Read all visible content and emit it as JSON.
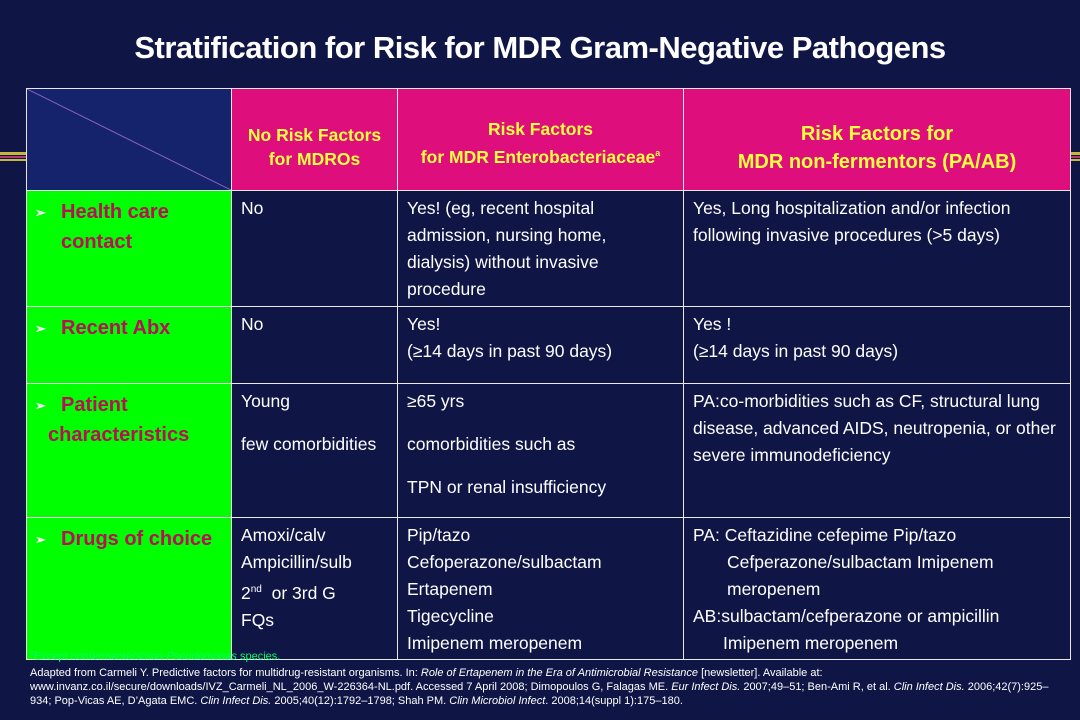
{
  "title": "Stratification for Risk for MDR Gram-Negative Pathogens",
  "columns": {
    "c1": [
      "No Risk Factors",
      "for MDROs"
    ],
    "c2": [
      "Risk Factors",
      "for MDR Enterobacteriaceae"
    ],
    "c2_sup": "a",
    "c3": [
      "Risk Factors for",
      "MDR non-fermentors (PA/AB)"
    ]
  },
  "rows": {
    "healthcare": {
      "label": [
        "Health care",
        "contact"
      ],
      "c1": [
        "No"
      ],
      "c2": [
        "Yes! (eg, recent hospital",
        "admission, nursing home,",
        "dialysis) without invasive",
        "procedure"
      ],
      "c3": [
        "Yes, Long hospitalization and/or infection",
        "following invasive procedures (>5 days)"
      ]
    },
    "abx": {
      "label": [
        "Recent Abx"
      ],
      "c1": [
        "No"
      ],
      "c2": [
        "Yes!",
        "(≥14 days in past 90 days)"
      ],
      "c3": [
        "Yes !",
        "(≥14 days in past 90 days)"
      ]
    },
    "patient": {
      "label": [
        "Patient",
        "characteristics"
      ],
      "c1": [
        "Young",
        "few comorbidities"
      ],
      "c2": [
        " ≥65 yrs",
        "comorbidities such as",
        "TPN or renal insufficiency"
      ],
      "c3": [
        "PA:co-morbidities such as CF, structural lung",
        "disease, advanced AIDS, neutropenia, or other",
        "severe immunodeficiency"
      ]
    },
    "drugs": {
      "label": [
        "Drugs of choice"
      ],
      "c1": [
        "Amoxi/calv",
        "Ampicillin/sulb",
        "2",
        "nd",
        "  or 3rd G",
        "FQs"
      ],
      "c2": [
        "Pip/tazo",
        "Cefoperazone/sulbactam",
        "Ertapenem",
        "Tigecycline",
        "Imipenem meropenem"
      ],
      "c3": [
        "PA: Ceftazidine cefepime Pip/tazo",
        "Cefperazone/sulbactam Imipenem",
        "meropenem",
        "AB:sulbactam/cefperazone or ampicillin",
        "Imipenem meropenem"
      ]
    }
  },
  "footnote": {
    "sup": "a",
    "pre": "Except nonfermenters/non-",
    "italic": "Pseudomonas",
    "post": " species."
  },
  "references": {
    "p1": "Adapted from Carmeli Y. Predictive factors for multidrug-resistant organisms. In: ",
    "i1": "Role of Ertapenem in the Era of Antimicrobial Resistance",
    "p2": " [newsletter]. Available at: www.invanz.co.il/secure/downloads/IVZ_Carmeli_NL_2006_W-226364-NL.pdf. Accessed 7 April 2008; Dimopoulos G, Falagas ME. ",
    "i2": "Eur Infect Dis.",
    "p3": " 2007;49–51; Ben-Ami R, et al. ",
    "i3": "Clin Infect Dis.",
    "p4": " 2006;42(7):925–934;  Pop-Vicas AE, D’Agata EMC. ",
    "i4": "Clin Infect Dis.",
    "p5": " 2005;40(12):1792–1798; Shah PM. ",
    "i5": "Clin Microbiol Infect",
    "p6": ". 2008;14(suppl 1):175–180."
  },
  "colors": {
    "background": "#0f1646",
    "header_pink": "#de0f7c",
    "header_text": "#ffff40",
    "row_green": "#00ff00",
    "row_label": "#b81055"
  }
}
